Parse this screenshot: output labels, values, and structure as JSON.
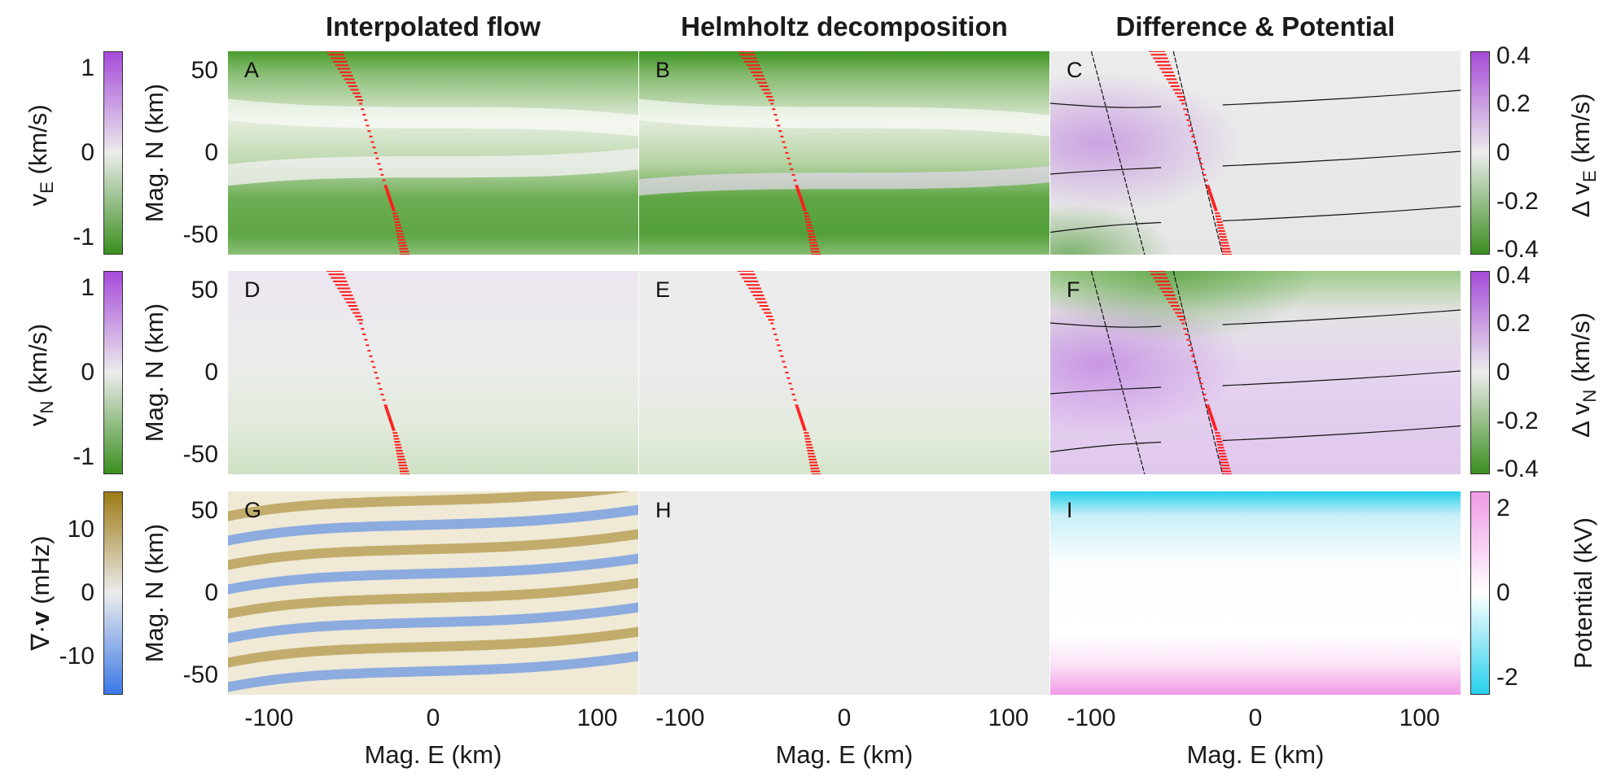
{
  "figure": {
    "column_titles": [
      "Interpolated flow",
      "Helmholtz decomposition",
      "Difference & Potential"
    ],
    "panel_letters": [
      "A",
      "B",
      "C",
      "D",
      "E",
      "F",
      "G",
      "H",
      "I"
    ],
    "y_axis_label": "Mag. N (km)",
    "x_axis_label": "Mag. E (km)",
    "x_tick_labels": [
      "-100",
      "0",
      "100"
    ],
    "y_tick_labels": [
      "50",
      "0",
      "-50"
    ],
    "colors": {
      "green_dark": "#3a8f1f",
      "purple_dark": "#a64ad9",
      "neutral": "#ececec",
      "brown": "#9c7a14",
      "blue": "#3a78e6",
      "cyan": "#27d0ec",
      "magenta": "#f09ae6",
      "trajectory": "#ff1a1a"
    }
  },
  "left_colorbars": [
    {
      "label_main": "v",
      "label_sub": "E",
      "label_tail": " (km/s)",
      "ticks": [
        "1",
        "0",
        "-1"
      ]
    },
    {
      "label_main": "v",
      "label_sub": "N",
      "label_tail": " (km/s)",
      "ticks": [
        "1",
        "0",
        "-1"
      ]
    },
    {
      "label_main": "∇·",
      "label_bold": "v",
      "label_tail": " (mHz)",
      "ticks": [
        "10",
        "0",
        "-10"
      ]
    }
  ],
  "right_colorbars": [
    {
      "label_main": "Δ v",
      "label_sub": "E",
      "label_tail": " (km/s)",
      "ticks": [
        "0.4",
        "0.2",
        "0",
        "-0.2",
        "-0.4"
      ]
    },
    {
      "label_main": "Δ v",
      "label_sub": "N",
      "label_tail": " (km/s)",
      "ticks": [
        "0.4",
        "0.2",
        "0",
        "-0.2",
        "-0.4"
      ]
    },
    {
      "label_main": "Potential",
      "label_tail": " (kV)",
      "ticks": [
        "2",
        "0",
        "-2"
      ]
    }
  ],
  "chart_data": {
    "type": "heatmap",
    "layout": "3x3 grid of heatmap panels",
    "x_axis": {
      "label": "Mag. E (km)",
      "range": [
        -125,
        125
      ],
      "ticks": [
        -100,
        0,
        100
      ]
    },
    "y_axis": {
      "label": "Mag. N (km)",
      "range": [
        -62,
        62
      ],
      "ticks": [
        -50,
        0,
        50
      ]
    },
    "rows": [
      {
        "quantity": "v_E (km/s)",
        "colorbar_range": [
          -1.2,
          1.2
        ],
        "colorbar_colors": [
          "#3a8f1f",
          "#ececec",
          "#a64ad9"
        ],
        "difference_range": [
          -0.42,
          0.42
        ]
      },
      {
        "quantity": "v_N (km/s)",
        "colorbar_range": [
          -1.2,
          1.2
        ],
        "colorbar_colors": [
          "#3a8f1f",
          "#ececec",
          "#a64ad9"
        ],
        "difference_range": [
          -0.42,
          0.42
        ]
      },
      {
        "quantity": "∇·v (mHz)",
        "colorbar_range": [
          -16,
          16
        ],
        "colorbar_colors": [
          "#3a78e6",
          "#ececec",
          "#9c7a14"
        ],
        "potential_range_kV": [
          -2.4,
          2.4
        ],
        "potential_colors": [
          "#27d0ec",
          "#ffffff",
          "#f09ae6"
        ]
      }
    ],
    "columns": [
      "Interpolated flow",
      "Helmholtz decomposition",
      "Difference & Potential"
    ],
    "trajectory": {
      "description": "red velocity vectors along track",
      "x_km": [
        -65,
        -45,
        -30,
        -25,
        -20
      ],
      "y_km": [
        62,
        30,
        -20,
        -35,
        -62
      ]
    }
  }
}
